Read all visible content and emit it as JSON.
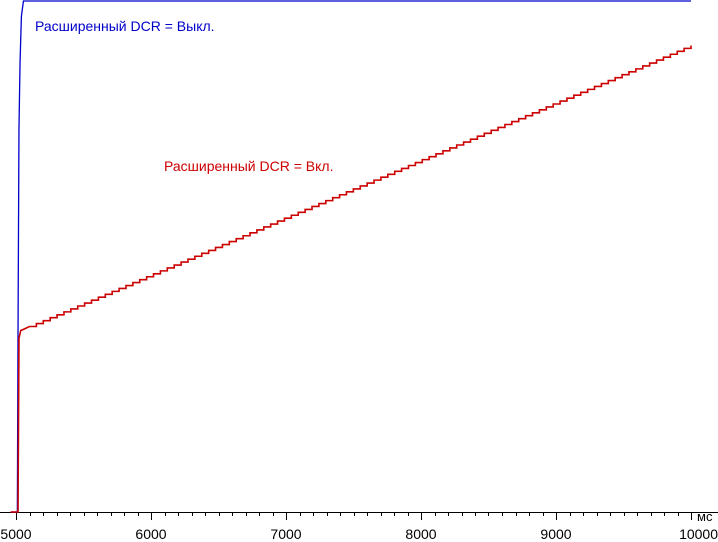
{
  "chart_data": {
    "type": "line",
    "xlabel": "",
    "ylabel": "",
    "x_unit": "мс",
    "xlim": [
      5000,
      10000
    ],
    "ylim": [
      0,
      100
    ],
    "grid": false,
    "x_ticks": [
      5000,
      6000,
      7000,
      8000,
      9000,
      10000
    ],
    "x_tick_labels": [
      "5000",
      "6000",
      "7000",
      "8000",
      "9000",
      "10000"
    ],
    "series": [
      {
        "name": "Расширенный DCR = Выкл.",
        "color": "#0000cc",
        "label_position": "top-left",
        "points": [
          [
            4960,
            0
          ],
          [
            5010,
            0
          ],
          [
            5015,
            35
          ],
          [
            5022,
            75
          ],
          [
            5030,
            88
          ],
          [
            5040,
            97
          ],
          [
            5055,
            100
          ],
          [
            10000,
            100
          ]
        ]
      },
      {
        "name": "Расширенный DCR = Вкл.",
        "color": "#cc0000",
        "label_position": "center",
        "steps": 96,
        "points": [
          [
            4960,
            0
          ],
          [
            5015,
            0
          ],
          [
            5022,
            34
          ],
          [
            5035,
            35.5
          ],
          [
            5100,
            36.3
          ],
          [
            10000,
            91.3
          ]
        ]
      }
    ]
  }
}
